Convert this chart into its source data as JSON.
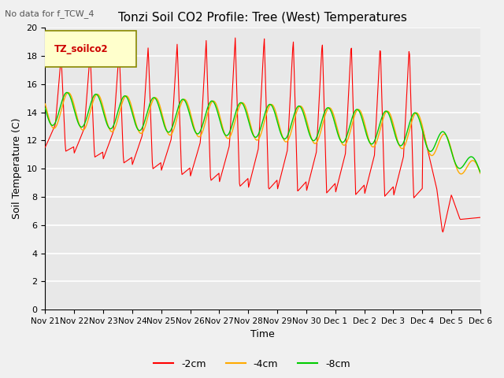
{
  "title": "Tonzi Soil CO2 Profile: Tree (West) Temperatures",
  "subtitle": "No data for f_TCW_4",
  "ylabel": "Soil Temperature (C)",
  "xlabel": "Time",
  "legend_label": "TZ_soilco2",
  "series_labels": [
    "-2cm",
    "-4cm",
    "-8cm"
  ],
  "series_colors": [
    "#ff0000",
    "#ffaa00",
    "#00cc00"
  ],
  "ylim": [
    0,
    20
  ],
  "yticks": [
    0,
    2,
    4,
    6,
    8,
    10,
    12,
    14,
    16,
    18,
    20
  ],
  "background_color": "#e8e8e8",
  "grid_color": "#ffffff",
  "xtick_labels": [
    "Nov 21",
    "Nov 22",
    "Nov 23",
    "Nov 24",
    "Nov 25",
    "Nov 26",
    "Nov 27",
    "Nov 28",
    "Nov 29",
    "Nov 30",
    "Dec 1",
    "Dec 2",
    "Dec 3",
    "Dec 4",
    "Dec 5",
    "Dec 6"
  ]
}
